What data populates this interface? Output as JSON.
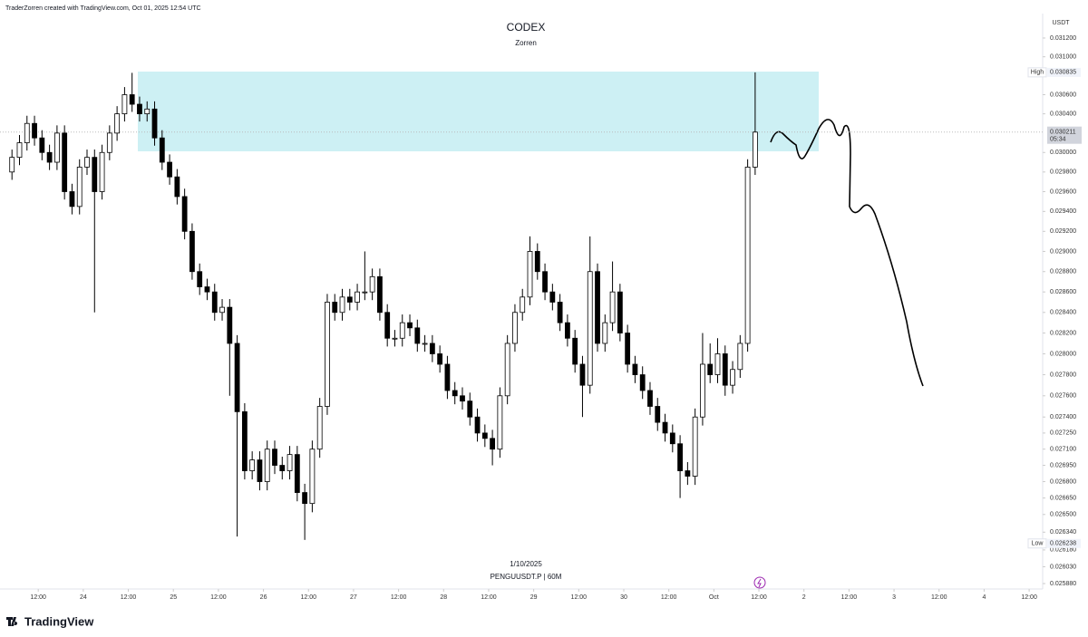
{
  "header": "TraderZorren created with TradingView.com, Oct 01, 2025 12:54 UTC",
  "logo": "TradingView",
  "chart_data": {
    "type": "candlestick",
    "title": "CODEX",
    "subtitle": "Zorren",
    "date_label": "1/10/2025",
    "symbol_label": "PENGUUSDT.P | 60M",
    "y_unit": "USDT",
    "log_scale": true,
    "up_color": "#ffffff",
    "down_color": "#000000",
    "x": [
      -7,
      -5,
      -3,
      -1,
      1,
      3,
      5,
      7,
      9,
      11,
      13,
      15,
      17,
      19,
      21,
      23,
      25,
      27,
      29,
      31,
      33,
      35,
      37,
      39,
      41,
      43,
      45,
      47,
      49,
      51,
      53,
      55,
      57,
      59,
      61,
      63,
      65,
      67,
      69,
      71,
      73,
      75,
      77,
      79,
      81,
      83,
      85,
      87,
      89,
      91,
      93,
      95,
      97,
      99,
      101,
      103,
      105,
      107,
      109,
      111,
      113,
      115,
      117,
      119,
      121,
      123,
      125,
      127,
      129,
      131,
      133,
      135,
      137,
      139,
      141,
      143,
      145,
      147,
      149,
      151,
      153,
      155,
      157,
      159,
      161,
      163,
      165,
      167,
      169,
      171,
      173,
      175,
      177,
      179,
      181,
      183,
      185,
      187,
      189,
      191
    ],
    "open": [
      0.0298,
      0.02995,
      0.0301,
      0.0303,
      0.03015,
      0.03,
      0.0299,
      0.0302,
      0.0296,
      0.02945,
      0.02985,
      0.02995,
      0.0296,
      0.03,
      0.0302,
      0.0304,
      0.0306,
      0.0305,
      0.0304,
      0.03045,
      0.03015,
      0.0299,
      0.02975,
      0.02955,
      0.0292,
      0.0288,
      0.02865,
      0.0286,
      0.0284,
      0.02845,
      0.0281,
      0.02745,
      0.0269,
      0.027,
      0.0268,
      0.0271,
      0.02695,
      0.0269,
      0.02705,
      0.0267,
      0.0266,
      0.0271,
      0.0275,
      0.0285,
      0.0284,
      0.02855,
      0.0285,
      0.0286,
      0.0286,
      0.02875,
      0.0284,
      0.02815,
      0.02815,
      0.0283,
      0.02825,
      0.0281,
      0.0281,
      0.028,
      0.0279,
      0.02765,
      0.0276,
      0.02755,
      0.0274,
      0.02725,
      0.0272,
      0.0271,
      0.0276,
      0.0281,
      0.0284,
      0.02855,
      0.029,
      0.0288,
      0.0286,
      0.0285,
      0.0283,
      0.02815,
      0.0279,
      0.0277,
      0.0288,
      0.0281,
      0.0283,
      0.0286,
      0.0282,
      0.0279,
      0.0278,
      0.02765,
      0.0275,
      0.02735,
      0.02725,
      0.02715,
      0.0269,
      0.02685,
      0.0274,
      0.0279,
      0.0278,
      0.028,
      0.0277,
      0.02785,
      0.0281,
      0.02985
    ],
    "high": [
      0.03003,
      0.03018,
      0.03038,
      0.03038,
      0.03023,
      0.03008,
      0.03028,
      0.03028,
      0.02968,
      0.02993,
      0.03003,
      0.03003,
      0.03008,
      0.03028,
      0.03048,
      0.03068,
      0.03083,
      0.03058,
      0.03053,
      0.03053,
      0.03023,
      0.02998,
      0.02983,
      0.02963,
      0.02928,
      0.02888,
      0.02873,
      0.02868,
      0.02853,
      0.02853,
      0.02818,
      0.02753,
      0.02708,
      0.02708,
      0.02718,
      0.02718,
      0.02703,
      0.02713,
      0.02713,
      0.02678,
      0.02718,
      0.02758,
      0.02858,
      0.02858,
      0.02863,
      0.02863,
      0.02868,
      0.029,
      0.02883,
      0.02883,
      0.02848,
      0.02823,
      0.02838,
      0.02838,
      0.02833,
      0.02818,
      0.02818,
      0.02808,
      0.02798,
      0.02773,
      0.02768,
      0.02763,
      0.02748,
      0.02733,
      0.02728,
      0.02768,
      0.02818,
      0.02848,
      0.02863,
      0.02915,
      0.02908,
      0.02888,
      0.02868,
      0.02858,
      0.02838,
      0.02823,
      0.02798,
      0.02915,
      0.02888,
      0.02838,
      0.0289,
      0.02868,
      0.02828,
      0.02798,
      0.02788,
      0.02773,
      0.02758,
      0.02743,
      0.02733,
      0.02723,
      0.02698,
      0.02748,
      0.0282,
      0.0281,
      0.02815,
      0.02808,
      0.02793,
      0.02818,
      0.02993,
      0.030835
    ],
    "low": [
      0.02972,
      0.02987,
      0.03002,
      0.03007,
      0.02992,
      0.02982,
      0.02982,
      0.02952,
      0.02937,
      0.02937,
      0.02977,
      0.0284,
      0.02952,
      0.02992,
      0.03012,
      0.03032,
      0.03042,
      0.03032,
      0.03032,
      0.03007,
      0.02982,
      0.02967,
      0.02947,
      0.02912,
      0.02872,
      0.02857,
      0.02852,
      0.02832,
      0.02832,
      0.0276,
      0.0263,
      0.02682,
      0.02682,
      0.02672,
      0.02672,
      0.02687,
      0.02682,
      0.02682,
      0.02662,
      0.02627,
      0.02652,
      0.02702,
      0.02742,
      0.02832,
      0.02832,
      0.02842,
      0.02842,
      0.02852,
      0.02852,
      0.02832,
      0.02807,
      0.02807,
      0.02807,
      0.02817,
      0.02802,
      0.02802,
      0.02792,
      0.02782,
      0.02757,
      0.02752,
      0.02747,
      0.02732,
      0.02717,
      0.02712,
      0.02695,
      0.02702,
      0.02752,
      0.02802,
      0.02832,
      0.02847,
      0.02872,
      0.02852,
      0.02842,
      0.02822,
      0.02807,
      0.02782,
      0.0274,
      0.02762,
      0.02802,
      0.02802,
      0.02822,
      0.02812,
      0.02782,
      0.02772,
      0.02757,
      0.02742,
      0.02727,
      0.02717,
      0.02707,
      0.02665,
      0.02677,
      0.02677,
      0.02732,
      0.02772,
      0.02772,
      0.0276,
      0.02762,
      0.02777,
      0.02802,
      0.02977
    ],
    "close": [
      0.02995,
      0.0301,
      0.0303,
      0.03015,
      0.03,
      0.0299,
      0.0302,
      0.0296,
      0.02945,
      0.02985,
      0.02995,
      0.0296,
      0.03,
      0.0302,
      0.0304,
      0.0306,
      0.0305,
      0.0304,
      0.03045,
      0.03015,
      0.0299,
      0.02975,
      0.02955,
      0.0292,
      0.0288,
      0.02865,
      0.0286,
      0.0284,
      0.02845,
      0.0281,
      0.02745,
      0.0269,
      0.027,
      0.0268,
      0.0271,
      0.02695,
      0.0269,
      0.02705,
      0.0267,
      0.0266,
      0.0271,
      0.0275,
      0.0285,
      0.0284,
      0.02855,
      0.0285,
      0.0286,
      0.0286,
      0.02875,
      0.0284,
      0.02815,
      0.02815,
      0.0283,
      0.02825,
      0.0281,
      0.0281,
      0.028,
      0.0279,
      0.02765,
      0.0276,
      0.02755,
      0.0274,
      0.02725,
      0.0272,
      0.0271,
      0.0276,
      0.0281,
      0.0284,
      0.02855,
      0.029,
      0.0288,
      0.0286,
      0.0285,
      0.0283,
      0.02815,
      0.0279,
      0.0277,
      0.0288,
      0.0281,
      0.0283,
      0.0286,
      0.0282,
      0.0279,
      0.0278,
      0.02765,
      0.0275,
      0.02735,
      0.02725,
      0.02715,
      0.0269,
      0.02685,
      0.0274,
      0.0279,
      0.0278,
      0.028,
      0.0277,
      0.02785,
      0.0281,
      0.02985,
      0.03021
    ],
    "xlim": [
      -8.5,
      267.6
    ],
    "ylim": [
      0.025832,
      0.031433
    ],
    "xticks": [
      {
        "value": 0,
        "label": "12:00"
      },
      {
        "value": 12,
        "label": "24"
      },
      {
        "value": 24,
        "label": "12:00"
      },
      {
        "value": 36,
        "label": "25"
      },
      {
        "value": 48,
        "label": "12:00"
      },
      {
        "value": 60,
        "label": "26"
      },
      {
        "value": 72,
        "label": "12:00"
      },
      {
        "value": 84,
        "label": "27"
      },
      {
        "value": 96,
        "label": "12:00"
      },
      {
        "value": 108,
        "label": "28"
      },
      {
        "value": 120,
        "label": "12:00"
      },
      {
        "value": 132,
        "label": "29"
      },
      {
        "value": 144,
        "label": "12:00"
      },
      {
        "value": 156,
        "label": "30"
      },
      {
        "value": 168,
        "label": "12:00"
      },
      {
        "value": 180,
        "label": "Oct"
      },
      {
        "value": 192,
        "label": "12:00"
      },
      {
        "value": 204,
        "label": "2"
      },
      {
        "value": 216,
        "label": "12:00"
      },
      {
        "value": 228,
        "label": "3"
      },
      {
        "value": 240,
        "label": "12:00"
      },
      {
        "value": 252,
        "label": "4"
      },
      {
        "value": 264,
        "label": "12:00"
      }
    ],
    "yticks": [
      {
        "value": 0.0312,
        "label": "0.031200"
      },
      {
        "value": 0.031,
        "label": "0.031000"
      },
      {
        "value": 0.0306,
        "label": "0.030600"
      },
      {
        "value": 0.0304,
        "label": "0.030400"
      },
      {
        "value": 0.03,
        "label": "0.030000"
      },
      {
        "value": 0.0298,
        "label": "0.029800"
      },
      {
        "value": 0.0296,
        "label": "0.029600"
      },
      {
        "value": 0.0294,
        "label": "0.029400"
      },
      {
        "value": 0.0292,
        "label": "0.029200"
      },
      {
        "value": 0.029,
        "label": "0.029000"
      },
      {
        "value": 0.0288,
        "label": "0.028800"
      },
      {
        "value": 0.0286,
        "label": "0.028600"
      },
      {
        "value": 0.0284,
        "label": "0.028400"
      },
      {
        "value": 0.0282,
        "label": "0.028200"
      },
      {
        "value": 0.028,
        "label": "0.028000"
      },
      {
        "value": 0.0278,
        "label": "0.027800"
      },
      {
        "value": 0.0276,
        "label": "0.027600"
      },
      {
        "value": 0.0274,
        "label": "0.027400"
      },
      {
        "value": 0.02725,
        "label": "0.027250"
      },
      {
        "value": 0.0271,
        "label": "0.027100"
      },
      {
        "value": 0.02695,
        "label": "0.026950"
      },
      {
        "value": 0.0268,
        "label": "0.026800"
      },
      {
        "value": 0.02665,
        "label": "0.026650"
      },
      {
        "value": 0.0265,
        "label": "0.026500"
      },
      {
        "value": 0.02634,
        "label": "0.026340"
      },
      {
        "value": 0.02618,
        "label": "0.026180"
      },
      {
        "value": 0.02603,
        "label": "0.026030"
      },
      {
        "value": 0.02588,
        "label": "0.025880"
      }
    ],
    "markers": [
      {
        "name": "High",
        "value": 0.030835
      },
      {
        "name": "Low",
        "value": 0.026238
      },
      {
        "value": 0.030211,
        "countdown": "05:34"
      }
    ]
  }
}
